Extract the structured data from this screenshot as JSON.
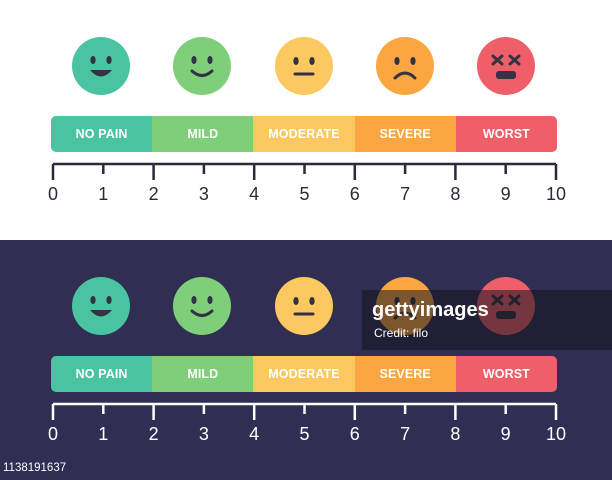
{
  "scale": {
    "segments": [
      {
        "label": "NO PAIN",
        "color": "#4ac3a2"
      },
      {
        "label": "MILD",
        "color": "#7fcf7a"
      },
      {
        "label": "MODERATE",
        "color": "#fdc85f"
      },
      {
        "label": "SEVERE",
        "color": "#fba640"
      },
      {
        "label": "WORST",
        "color": "#ee5f6a"
      }
    ],
    "ticks": [
      "0",
      "1",
      "2",
      "3",
      "4",
      "5",
      "6",
      "7",
      "8",
      "9",
      "10"
    ],
    "faces": [
      {
        "expression": "very-happy",
        "color": "#4ac3a2"
      },
      {
        "expression": "smile",
        "color": "#7fcf7a"
      },
      {
        "expression": "neutral",
        "color": "#fdc85f"
      },
      {
        "expression": "sad",
        "color": "#fba640"
      },
      {
        "expression": "dizzy-x-eyes",
        "color": "#ee5f6a"
      }
    ]
  },
  "panels": {
    "top_background": "#ffffff",
    "bottom_background": "#302e52"
  },
  "watermark": {
    "brand": "gettyimages",
    "credit": "Credit: filo",
    "image_id": "1138191637"
  }
}
